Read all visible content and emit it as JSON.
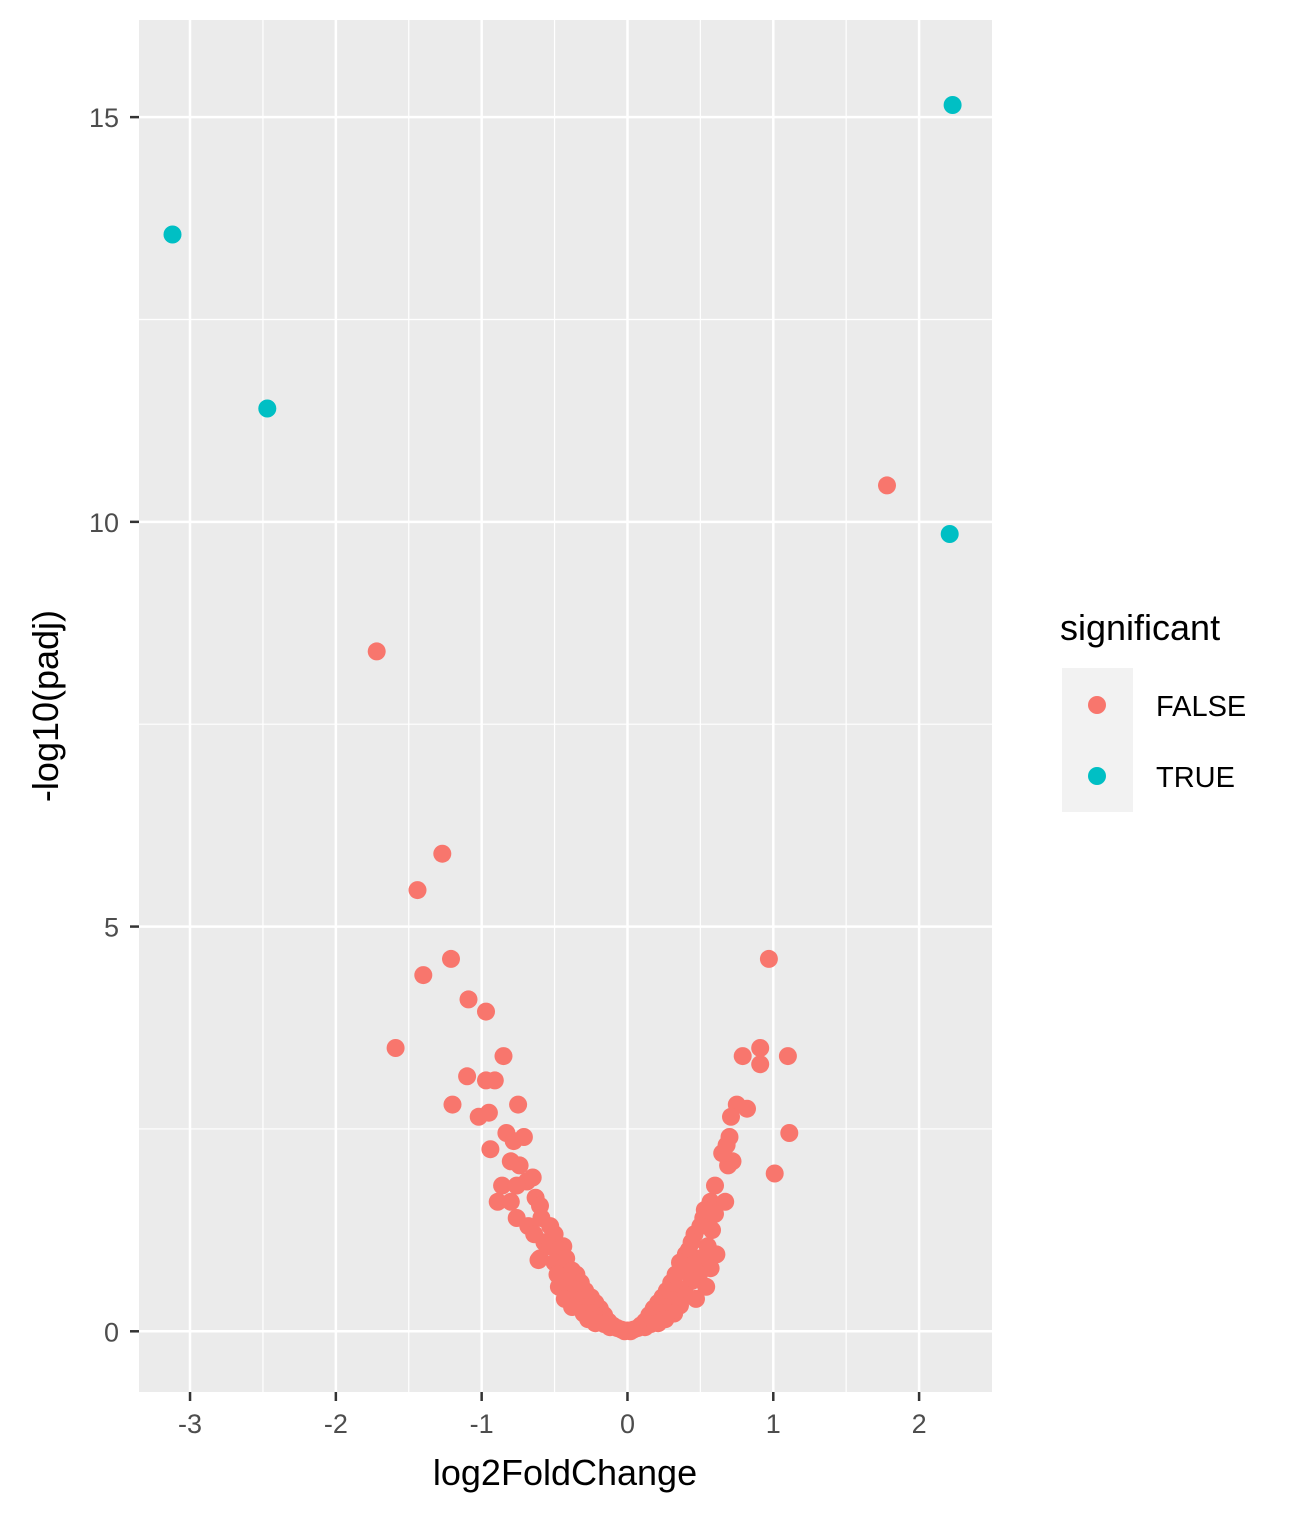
{
  "chart_data": {
    "type": "scatter",
    "xlabel": "log2FoldChange",
    "ylabel": "-log10(padj)",
    "xlim": [
      -3.35,
      2.5
    ],
    "ylim": [
      -0.75,
      16.2
    ],
    "x_ticks": [
      -3,
      -2,
      -1,
      0,
      1,
      2
    ],
    "x_tick_labels": [
      "-3",
      "-2",
      "-1",
      "0",
      "1",
      "2"
    ],
    "y_ticks": [
      0,
      5,
      10,
      15
    ],
    "y_tick_labels": [
      "0",
      "5",
      "10",
      "15"
    ],
    "grid": true,
    "legend": {
      "title": "significant",
      "placement": "right",
      "entries": [
        {
          "label": "FALSE",
          "color": "#F8766D"
        },
        {
          "label": "TRUE",
          "color": "#00BFC4"
        }
      ]
    },
    "colors": {
      "panel_background": "#EBEBEB",
      "grid": "#FFFFFF",
      "FALSE": "#F8766D",
      "TRUE": "#00BFC4"
    },
    "series": [
      {
        "name": "TRUE",
        "points": [
          [
            2.23,
            15.15
          ],
          [
            -3.12,
            13.55
          ],
          [
            -2.47,
            11.4
          ],
          [
            2.21,
            9.85
          ]
        ]
      },
      {
        "name": "FALSE",
        "points": [
          [
            1.78,
            10.45
          ],
          [
            -1.72,
            8.4
          ],
          [
            -1.27,
            5.9
          ],
          [
            -1.44,
            5.45
          ],
          [
            -1.4,
            4.4
          ],
          [
            -1.21,
            4.6
          ],
          [
            0.97,
            4.6
          ],
          [
            -1.09,
            4.1
          ],
          [
            -0.97,
            3.95
          ],
          [
            -1.59,
            3.5
          ],
          [
            0.91,
            3.5
          ],
          [
            0.79,
            3.4
          ],
          [
            1.1,
            3.4
          ],
          [
            0.91,
            3.3
          ],
          [
            -0.85,
            3.4
          ],
          [
            -1.1,
            3.15
          ],
          [
            -0.97,
            3.1
          ],
          [
            -0.91,
            3.1
          ],
          [
            -1.2,
            2.8
          ],
          [
            -1.02,
            2.65
          ],
          [
            -0.95,
            2.7
          ],
          [
            -0.75,
            2.8
          ],
          [
            0.75,
            2.8
          ],
          [
            0.82,
            2.75
          ],
          [
            0.71,
            2.65
          ],
          [
            1.11,
            2.45
          ],
          [
            -0.83,
            2.45
          ],
          [
            -0.78,
            2.35
          ],
          [
            -0.71,
            2.4
          ],
          [
            0.7,
            2.4
          ],
          [
            -0.94,
            2.25
          ],
          [
            0.68,
            2.3
          ],
          [
            -0.8,
            2.1
          ],
          [
            0.72,
            2.1
          ],
          [
            -0.74,
            2.05
          ],
          [
            0.69,
            2.05
          ],
          [
            0.65,
            2.2
          ],
          [
            1.01,
            1.95
          ],
          [
            -0.86,
            1.8
          ],
          [
            -0.69,
            1.85
          ],
          [
            -0.76,
            1.8
          ],
          [
            -0.65,
            1.9
          ],
          [
            -0.89,
            1.6
          ],
          [
            0.6,
            1.8
          ],
          [
            -0.8,
            1.6
          ],
          [
            -0.63,
            1.65
          ],
          [
            -0.6,
            1.55
          ],
          [
            0.57,
            1.6
          ],
          [
            0.67,
            1.6
          ],
          [
            0.53,
            1.5
          ],
          [
            -0.76,
            1.4
          ],
          [
            -0.59,
            1.4
          ],
          [
            0.52,
            1.4
          ],
          [
            0.6,
            1.45
          ],
          [
            -0.68,
            1.3
          ],
          [
            -0.53,
            1.3
          ],
          [
            0.5,
            1.3
          ],
          [
            -0.64,
            1.2
          ],
          [
            -0.5,
            1.2
          ],
          [
            0.46,
            1.2
          ],
          [
            0.58,
            1.25
          ],
          [
            -0.57,
            1.1
          ],
          [
            0.44,
            1.1
          ],
          [
            -0.53,
            1.05
          ],
          [
            -0.44,
            1.05
          ],
          [
            0.55,
            1.05
          ],
          [
            -0.47,
            1.0
          ],
          [
            0.42,
            1.0
          ],
          [
            0.61,
            0.95
          ],
          [
            -0.6,
            0.9
          ],
          [
            -0.42,
            0.9
          ],
          [
            0.4,
            0.95
          ],
          [
            0.5,
            0.9
          ],
          [
            -0.5,
            0.85
          ],
          [
            -0.61,
            0.88
          ],
          [
            0.36,
            0.85
          ],
          [
            0.45,
            0.82
          ],
          [
            -0.45,
            0.78
          ],
          [
            -0.38,
            0.75
          ],
          [
            0.38,
            0.75
          ],
          [
            0.57,
            0.78
          ],
          [
            -0.48,
            0.7
          ],
          [
            -0.35,
            0.7
          ],
          [
            0.33,
            0.7
          ],
          [
            0.49,
            0.7
          ],
          [
            -0.41,
            0.62
          ],
          [
            -0.32,
            0.6
          ],
          [
            0.3,
            0.6
          ],
          [
            0.44,
            0.62
          ],
          [
            -0.47,
            0.55
          ],
          [
            -0.36,
            0.52
          ],
          [
            0.36,
            0.52
          ],
          [
            0.54,
            0.55
          ],
          [
            -0.29,
            0.5
          ],
          [
            0.27,
            0.5
          ],
          [
            -0.4,
            0.45
          ],
          [
            -0.25,
            0.42
          ],
          [
            0.24,
            0.42
          ],
          [
            0.4,
            0.45
          ],
          [
            -0.33,
            0.38
          ],
          [
            -0.43,
            0.4
          ],
          [
            0.31,
            0.38
          ],
          [
            0.47,
            0.4
          ],
          [
            -0.22,
            0.35
          ],
          [
            0.21,
            0.35
          ],
          [
            -0.28,
            0.3
          ],
          [
            -0.38,
            0.3
          ],
          [
            0.27,
            0.3
          ],
          [
            0.36,
            0.32
          ],
          [
            -0.19,
            0.28
          ],
          [
            0.18,
            0.28
          ],
          [
            -0.3,
            0.22
          ],
          [
            -0.24,
            0.22
          ],
          [
            0.23,
            0.22
          ],
          [
            0.32,
            0.22
          ],
          [
            -0.16,
            0.2
          ],
          [
            0.15,
            0.2
          ],
          [
            -0.2,
            0.15
          ],
          [
            -0.27,
            0.15
          ],
          [
            0.19,
            0.15
          ],
          [
            0.26,
            0.15
          ],
          [
            -0.13,
            0.12
          ],
          [
            0.12,
            0.12
          ],
          [
            -0.16,
            0.09
          ],
          [
            -0.22,
            0.1
          ],
          [
            0.16,
            0.09
          ],
          [
            0.21,
            0.1
          ],
          [
            -0.1,
            0.07
          ],
          [
            0.09,
            0.07
          ],
          [
            -0.12,
            0.05
          ],
          [
            0.12,
            0.05
          ],
          [
            -0.07,
            0.04
          ],
          [
            0.07,
            0.04
          ],
          [
            -0.04,
            0.02
          ],
          [
            0.04,
            0.02
          ],
          [
            0.0,
            0.01
          ],
          [
            -0.02,
            0.0
          ],
          [
            0.02,
            0.0
          ]
        ]
      }
    ]
  }
}
